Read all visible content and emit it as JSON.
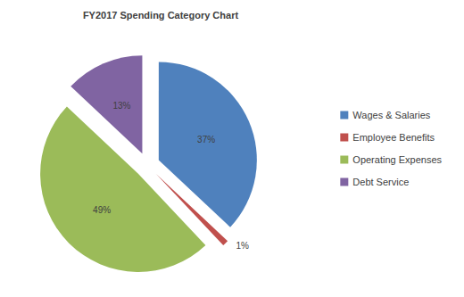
{
  "chart_data": {
    "type": "pie",
    "title": "FY2017 Spending Category Chart",
    "categories": [
      "Wages & Salaries",
      "Employee Benefits",
      "Operating Expenses",
      "Debt Service"
    ],
    "values": [
      37,
      1,
      49,
      13
    ],
    "value_labels": [
      "37%",
      "1%",
      "49%",
      "13%"
    ],
    "colors": [
      "#4f81bd",
      "#c0504d",
      "#9bbb59",
      "#8064a2"
    ],
    "data_labels": true,
    "legend": "right"
  }
}
